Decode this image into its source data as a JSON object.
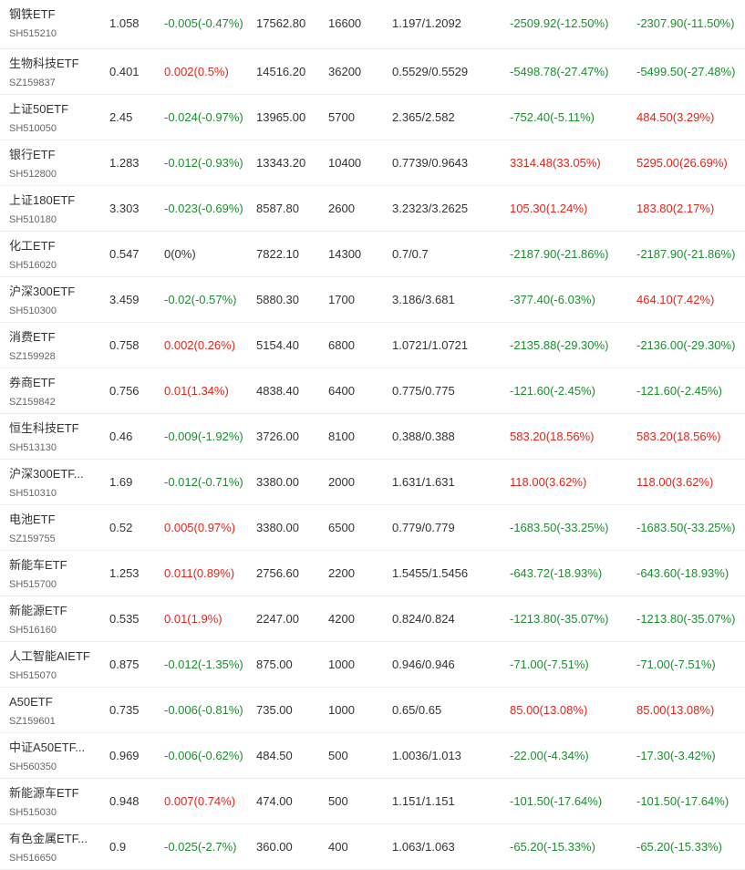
{
  "colors": {
    "up": "#e0261b",
    "down": "#1b8f2e",
    "flat": "#333333"
  },
  "rows": [
    {
      "name": "钢铁ETF",
      "code": "SH515210",
      "price": "1.058",
      "change": "-0.005(-0.47%)",
      "change_dir": "down",
      "market_value": "17562.80",
      "quantity": "16600",
      "cost": "1.197/1.2092",
      "pnl1": "-2509.92(-12.50%)",
      "pnl1_dir": "down",
      "pnl2": "-2307.90(-11.50%)",
      "pnl2_dir": "down"
    },
    {
      "name": "生物科技ETF",
      "code": "SZ159837",
      "price": "0.401",
      "change": "0.002(0.5%)",
      "change_dir": "up",
      "market_value": "14516.20",
      "quantity": "36200",
      "cost": "0.5529/0.5529",
      "pnl1": "-5498.78(-27.47%)",
      "pnl1_dir": "down",
      "pnl2": "-5499.50(-27.48%)",
      "pnl2_dir": "down"
    },
    {
      "name": "上证50ETF",
      "code": "SH510050",
      "price": "2.45",
      "change": "-0.024(-0.97%)",
      "change_dir": "down",
      "market_value": "13965.00",
      "quantity": "5700",
      "cost": "2.365/2.582",
      "pnl1": "-752.40(-5.11%)",
      "pnl1_dir": "down",
      "pnl2": "484.50(3.29%)",
      "pnl2_dir": "up"
    },
    {
      "name": "银行ETF",
      "code": "SH512800",
      "price": "1.283",
      "change": "-0.012(-0.93%)",
      "change_dir": "down",
      "market_value": "13343.20",
      "quantity": "10400",
      "cost": "0.7739/0.9643",
      "pnl1": "3314.48(33.05%)",
      "pnl1_dir": "up",
      "pnl2": "5295.00(26.69%)",
      "pnl2_dir": "up"
    },
    {
      "name": "上证180ETF",
      "code": "SH510180",
      "price": "3.303",
      "change": "-0.023(-0.69%)",
      "change_dir": "down",
      "market_value": "8587.80",
      "quantity": "2600",
      "cost": "3.2323/3.2625",
      "pnl1": "105.30(1.24%)",
      "pnl1_dir": "up",
      "pnl2": "183.80(2.17%)",
      "pnl2_dir": "up"
    },
    {
      "name": "化工ETF",
      "code": "SH516020",
      "price": "0.547",
      "change": "0(0%)",
      "change_dir": "flat",
      "market_value": "7822.10",
      "quantity": "14300",
      "cost": "0.7/0.7",
      "pnl1": "-2187.90(-21.86%)",
      "pnl1_dir": "down",
      "pnl2": "-2187.90(-21.86%)",
      "pnl2_dir": "down"
    },
    {
      "name": "沪深300ETF",
      "code": "SH510300",
      "price": "3.459",
      "change": "-0.02(-0.57%)",
      "change_dir": "down",
      "market_value": "5880.30",
      "quantity": "1700",
      "cost": "3.186/3.681",
      "pnl1": "-377.40(-6.03%)",
      "pnl1_dir": "down",
      "pnl2": "464.10(7.42%)",
      "pnl2_dir": "up"
    },
    {
      "name": "消费ETF",
      "code": "SZ159928",
      "price": "0.758",
      "change": "0.002(0.26%)",
      "change_dir": "up",
      "market_value": "5154.40",
      "quantity": "6800",
      "cost": "1.0721/1.0721",
      "pnl1": "-2135.88(-29.30%)",
      "pnl1_dir": "down",
      "pnl2": "-2136.00(-29.30%)",
      "pnl2_dir": "down"
    },
    {
      "name": "券商ETF",
      "code": "SZ159842",
      "price": "0.756",
      "change": "0.01(1.34%)",
      "change_dir": "up",
      "market_value": "4838.40",
      "quantity": "6400",
      "cost": "0.775/0.775",
      "pnl1": "-121.60(-2.45%)",
      "pnl1_dir": "down",
      "pnl2": "-121.60(-2.45%)",
      "pnl2_dir": "down"
    },
    {
      "name": "恒生科技ETF",
      "code": "SH513130",
      "price": "0.46",
      "change": "-0.009(-1.92%)",
      "change_dir": "down",
      "market_value": "3726.00",
      "quantity": "8100",
      "cost": "0.388/0.388",
      "pnl1": "583.20(18.56%)",
      "pnl1_dir": "up",
      "pnl2": "583.20(18.56%)",
      "pnl2_dir": "up"
    },
    {
      "name": "沪深300ETF...",
      "code": "SH510310",
      "price": "1.69",
      "change": "-0.012(-0.71%)",
      "change_dir": "down",
      "market_value": "3380.00",
      "quantity": "2000",
      "cost": "1.631/1.631",
      "pnl1": "118.00(3.62%)",
      "pnl1_dir": "up",
      "pnl2": "118.00(3.62%)",
      "pnl2_dir": "up"
    },
    {
      "name": "电池ETF",
      "code": "SZ159755",
      "price": "0.52",
      "change": "0.005(0.97%)",
      "change_dir": "up",
      "market_value": "3380.00",
      "quantity": "6500",
      "cost": "0.779/0.779",
      "pnl1": "-1683.50(-33.25%)",
      "pnl1_dir": "down",
      "pnl2": "-1683.50(-33.25%)",
      "pnl2_dir": "down"
    },
    {
      "name": "新能车ETF",
      "code": "SH515700",
      "price": "1.253",
      "change": "0.011(0.89%)",
      "change_dir": "up",
      "market_value": "2756.60",
      "quantity": "2200",
      "cost": "1.5455/1.5456",
      "pnl1": "-643.72(-18.93%)",
      "pnl1_dir": "down",
      "pnl2": "-643.60(-18.93%)",
      "pnl2_dir": "down"
    },
    {
      "name": "新能源ETF",
      "code": "SH516160",
      "price": "0.535",
      "change": "0.01(1.9%)",
      "change_dir": "up",
      "market_value": "2247.00",
      "quantity": "4200",
      "cost": "0.824/0.824",
      "pnl1": "-1213.80(-35.07%)",
      "pnl1_dir": "down",
      "pnl2": "-1213.80(-35.07%)",
      "pnl2_dir": "down"
    },
    {
      "name": "人工智能AIETF",
      "code": "SH515070",
      "price": "0.875",
      "change": "-0.012(-1.35%)",
      "change_dir": "down",
      "market_value": "875.00",
      "quantity": "1000",
      "cost": "0.946/0.946",
      "pnl1": "-71.00(-7.51%)",
      "pnl1_dir": "down",
      "pnl2": "-71.00(-7.51%)",
      "pnl2_dir": "down"
    },
    {
      "name": "A50ETF",
      "code": "SZ159601",
      "price": "0.735",
      "change": "-0.006(-0.81%)",
      "change_dir": "down",
      "market_value": "735.00",
      "quantity": "1000",
      "cost": "0.65/0.65",
      "pnl1": "85.00(13.08%)",
      "pnl1_dir": "up",
      "pnl2": "85.00(13.08%)",
      "pnl2_dir": "up"
    },
    {
      "name": "中证A50ETF...",
      "code": "SH560350",
      "price": "0.969",
      "change": "-0.006(-0.62%)",
      "change_dir": "down",
      "market_value": "484.50",
      "quantity": "500",
      "cost": "1.0036/1.013",
      "pnl1": "-22.00(-4.34%)",
      "pnl1_dir": "down",
      "pnl2": "-17.30(-3.42%)",
      "pnl2_dir": "down"
    },
    {
      "name": "新能源车ETF",
      "code": "SH515030",
      "price": "0.948",
      "change": "0.007(0.74%)",
      "change_dir": "up",
      "market_value": "474.00",
      "quantity": "500",
      "cost": "1.151/1.151",
      "pnl1": "-101.50(-17.64%)",
      "pnl1_dir": "down",
      "pnl2": "-101.50(-17.64%)",
      "pnl2_dir": "down"
    },
    {
      "name": "有色金属ETF...",
      "code": "SH516650",
      "price": "0.9",
      "change": "-0.025(-2.7%)",
      "change_dir": "down",
      "market_value": "360.00",
      "quantity": "400",
      "cost": "1.063/1.063",
      "pnl1": "-65.20(-15.33%)",
      "pnl1_dir": "down",
      "pnl2": "-65.20(-15.33%)",
      "pnl2_dir": "down"
    }
  ]
}
